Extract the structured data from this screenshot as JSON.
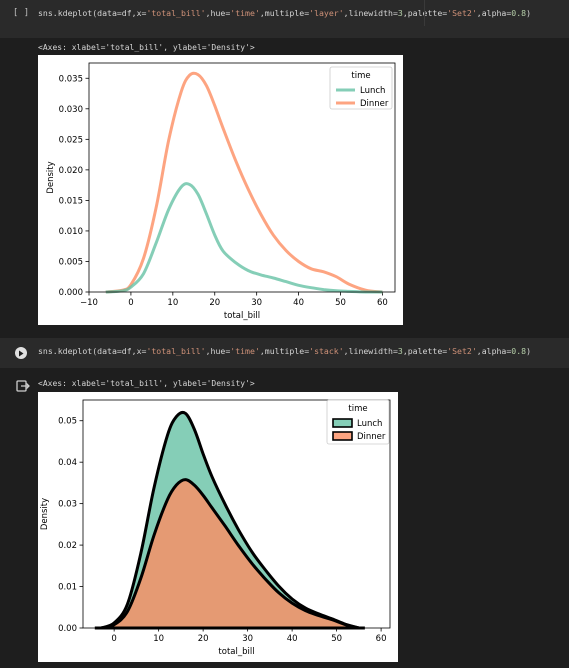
{
  "cells": [
    {
      "run_label": "[ ]",
      "code": {
        "prefix": "sns.kdeplot(data=df,x=",
        "x_str": "'total_bill'",
        "hue_kw": ",hue=",
        "hue_str": "'time'",
        "mult_kw": ",multiple=",
        "mult_str": "'layer'",
        "lw_kw": ",linewidth=",
        "lw_num": "3",
        "pal_kw": ",palette=",
        "pal_str": "'Set2'",
        "alpha_kw": ",alpha=",
        "alpha_num": "0.8",
        "suffix": ")"
      },
      "output_text": "<Axes: xlabel='total_bill', ylabel='Density'>"
    },
    {
      "run_label": "",
      "code": {
        "prefix": "sns.kdeplot(data=df,x=",
        "x_str": "'total_bill'",
        "hue_kw": ",hue=",
        "hue_str": "'time'",
        "mult_kw": ",multiple=",
        "mult_str": "'stack'",
        "lw_kw": ",linewidth=",
        "lw_num": "3",
        "pal_kw": ",palette=",
        "pal_str": "'Set2'",
        "alpha_kw": ",alpha=",
        "alpha_num": "0.8",
        "suffix": ")"
      },
      "output_text": "<Axes: xlabel='total_bill', ylabel='Density'>"
    }
  ],
  "colors": {
    "lunch": "#66c2a5",
    "dinner": "#fc8d62"
  },
  "chart_data": [
    {
      "type": "line",
      "xlabel": "total_bill",
      "ylabel": "Density",
      "xlim": [
        -10,
        63
      ],
      "ylim": [
        0,
        0.0375
      ],
      "xticks": [
        -10,
        0,
        10,
        20,
        30,
        40,
        50,
        60
      ],
      "xtick_labels": [
        "−10",
        "0",
        "10",
        "20",
        "30",
        "40",
        "50",
        "60"
      ],
      "yticks": [
        0.0,
        0.005,
        0.01,
        0.015,
        0.02,
        0.025,
        0.03,
        0.035
      ],
      "ytick_labels": [
        "0.000",
        "0.005",
        "0.010",
        "0.015",
        "0.020",
        "0.025",
        "0.030",
        "0.035"
      ],
      "legend": {
        "title": "time",
        "placement": "top-right",
        "entries": [
          "Lunch",
          "Dinner"
        ]
      },
      "x": [
        -6,
        -2,
        0,
        3,
        6,
        9,
        12,
        14,
        16,
        18,
        20,
        22,
        25,
        28,
        31,
        34,
        37,
        40,
        43,
        46,
        49,
        52,
        56,
        60
      ],
      "series": [
        {
          "name": "Lunch",
          "values": [
            0.0,
            0.0002,
            0.0008,
            0.003,
            0.008,
            0.0135,
            0.0172,
            0.0176,
            0.016,
            0.0128,
            0.0093,
            0.0067,
            0.0048,
            0.0035,
            0.0028,
            0.0023,
            0.0017,
            0.0011,
            0.0007,
            0.0004,
            0.0002,
            0.0001,
            0.0,
            0.0
          ]
        },
        {
          "name": "Dinner",
          "values": [
            0.0,
            0.0003,
            0.0012,
            0.0055,
            0.0138,
            0.0248,
            0.0328,
            0.0355,
            0.0356,
            0.0338,
            0.0305,
            0.0268,
            0.0215,
            0.0168,
            0.0127,
            0.0093,
            0.0068,
            0.005,
            0.0038,
            0.0033,
            0.0025,
            0.0013,
            0.0003,
            0.0
          ]
        }
      ]
    },
    {
      "type": "area",
      "xlabel": "total_bill",
      "ylabel": "Density",
      "xlim": [
        -7,
        62
      ],
      "ylim": [
        0,
        0.055
      ],
      "xticks": [
        0,
        10,
        20,
        30,
        40,
        50,
        60
      ],
      "xtick_labels": [
        "0",
        "10",
        "20",
        "30",
        "40",
        "50",
        "60"
      ],
      "yticks": [
        0.0,
        0.01,
        0.02,
        0.03,
        0.04,
        0.05
      ],
      "ytick_labels": [
        "0.00",
        "0.01",
        "0.02",
        "0.03",
        "0.04",
        "0.05"
      ],
      "legend": {
        "title": "time",
        "placement": "top-right",
        "entries": [
          "Lunch",
          "Dinner"
        ]
      },
      "x": [
        -3,
        0,
        3,
        6,
        9,
        12,
        14,
        16,
        18,
        20,
        22,
        25,
        28,
        31,
        34,
        37,
        40,
        43,
        46,
        49,
        52,
        55
      ],
      "series": [
        {
          "name": "Dinner",
          "values": [
            0.0,
            0.0008,
            0.004,
            0.012,
            0.0225,
            0.031,
            0.0345,
            0.0358,
            0.0345,
            0.032,
            0.029,
            0.0245,
            0.0198,
            0.0155,
            0.0118,
            0.0085,
            0.006,
            0.0042,
            0.003,
            0.002,
            0.0008,
            0.0
          ]
        },
        {
          "name": "Lunch",
          "values": [
            0.0,
            0.0004,
            0.0018,
            0.006,
            0.0115,
            0.0155,
            0.0165,
            0.016,
            0.0135,
            0.01,
            0.0075,
            0.0052,
            0.0038,
            0.0028,
            0.0022,
            0.0016,
            0.001,
            0.0006,
            0.0004,
            0.0002,
            0.0001,
            0.0
          ]
        }
      ]
    }
  ]
}
